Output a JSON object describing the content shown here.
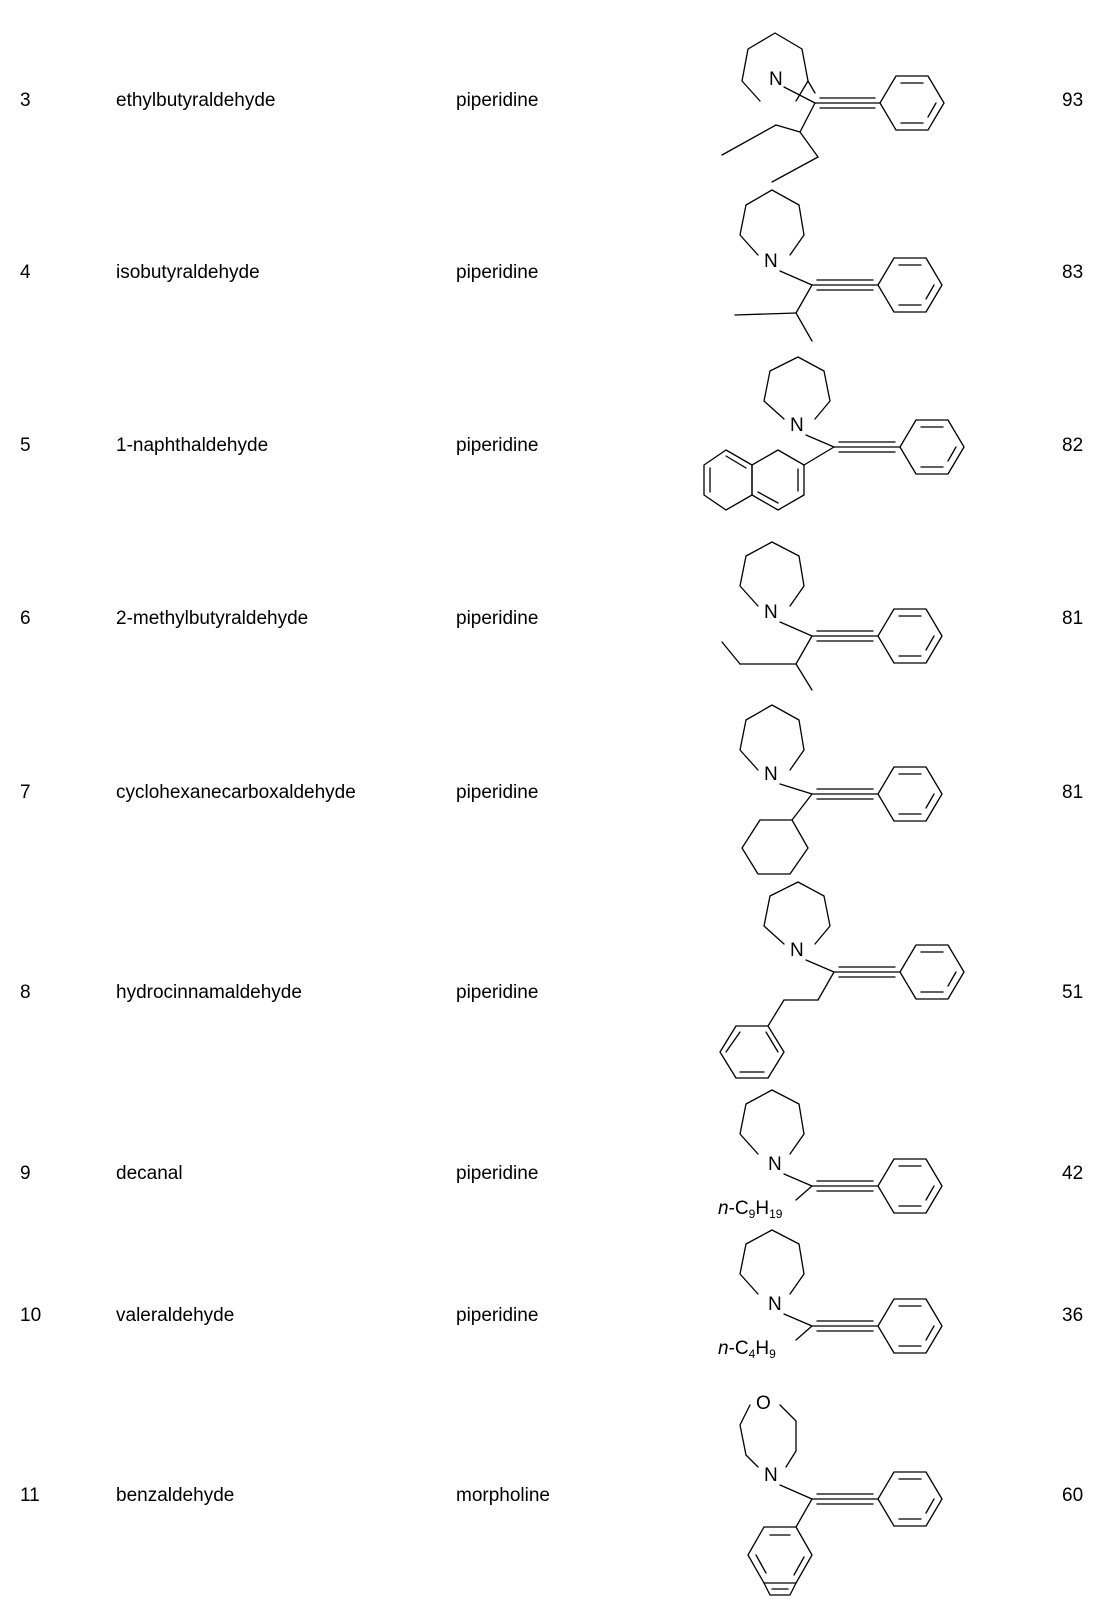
{
  "rows": [
    {
      "entry": "3",
      "aldehyde": "ethylbutyraldehyde",
      "amine": "piperidine",
      "yield": "93"
    },
    {
      "entry": "4",
      "aldehyde": "isobutyraldehyde",
      "amine": "piperidine",
      "yield": "83"
    },
    {
      "entry": "5",
      "aldehyde": "1-naphthaldehyde",
      "amine": "piperidine",
      "yield": "82"
    },
    {
      "entry": "6",
      "aldehyde": "2-methylbutyraldehyde",
      "amine": "piperidine",
      "yield": "81"
    },
    {
      "entry": "7",
      "aldehyde": "cyclohexanecarboxaldehyde",
      "amine": "piperidine",
      "yield": "81"
    },
    {
      "entry": "8",
      "aldehyde": "hydrocinnamaldehyde",
      "amine": "piperidine",
      "yield": "51"
    },
    {
      "entry": "9",
      "aldehyde": "decanal",
      "amine": "piperidine",
      "yield": "42"
    },
    {
      "entry": "10",
      "aldehyde": "valeraldehyde",
      "amine": "piperidine",
      "yield": "36"
    },
    {
      "entry": "11",
      "aldehyde": "benzaldehyde",
      "amine": "morpholine",
      "yield": "60"
    }
  ],
  "structure_labels": {
    "nitrogen": "N",
    "oxygen": "O",
    "decyl_prefix": "n",
    "decyl_c": "-C",
    "decyl_c_sub": "9",
    "decyl_h": "H",
    "decyl_h_sub": "19",
    "butyl_prefix": "n",
    "butyl_c": "-C",
    "butyl_c_sub": "4",
    "butyl_h": "H",
    "butyl_h_sub": "9"
  }
}
